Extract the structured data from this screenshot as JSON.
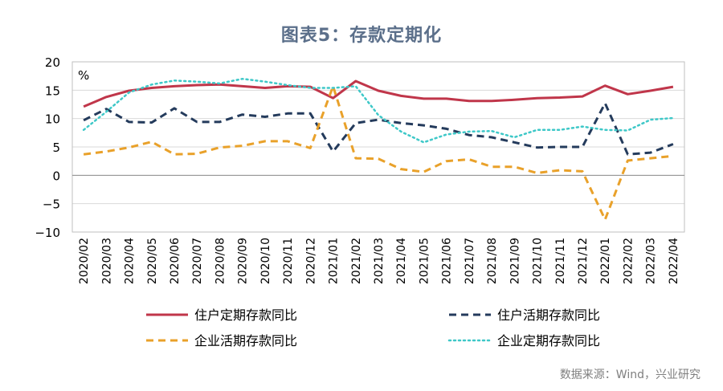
{
  "chart_data": {
    "type": "line",
    "title": "图表5：存款定期化",
    "y_unit": "%",
    "ylim": [
      -10,
      20
    ],
    "yticks": [
      -10,
      -5,
      0,
      5,
      10,
      15,
      20
    ],
    "grid": true,
    "legend_position": "bottom",
    "source": "数据来源：Wind，兴业研究",
    "x": [
      "2020/02",
      "2020/03",
      "2020/04",
      "2020/05",
      "2020/06",
      "2020/07",
      "2020/08",
      "2020/09",
      "2020/10",
      "2020/11",
      "2020/12",
      "2021/01",
      "2021/02",
      "2021/03",
      "2021/04",
      "2021/05",
      "2021/06",
      "2021/07",
      "2021/08",
      "2021/09",
      "2021/10",
      "2021/11",
      "2021/12",
      "2022/01",
      "2022/02",
      "2022/03",
      "2022/04"
    ],
    "series": [
      {
        "name": "住户定期存款同比",
        "color": "#c0364a",
        "style": "solid",
        "values": [
          12.1,
          13.8,
          14.9,
          15.4,
          15.7,
          15.9,
          16.0,
          15.7,
          15.4,
          15.7,
          15.6,
          13.6,
          16.6,
          14.9,
          14.0,
          13.5,
          13.5,
          13.1,
          13.1,
          13.3,
          13.6,
          13.7,
          13.9,
          15.8,
          14.3,
          14.9,
          15.6
        ]
      },
      {
        "name": "住户活期存款同比",
        "color": "#243b5c",
        "style": "dash",
        "values": [
          9.7,
          11.7,
          9.4,
          9.3,
          11.8,
          9.4,
          9.4,
          10.7,
          10.3,
          10.9,
          10.9,
          4.2,
          9.2,
          9.8,
          9.2,
          8.8,
          8.2,
          7.1,
          6.7,
          5.8,
          4.9,
          5.0,
          5.0,
          12.7,
          3.7,
          4.0,
          5.5
        ]
      },
      {
        "name": "企业活期存款同比",
        "color": "#e9a12a",
        "style": "dash",
        "values": [
          3.7,
          4.2,
          4.9,
          5.9,
          3.7,
          3.8,
          4.9,
          5.2,
          6.0,
          6.0,
          4.8,
          15.7,
          3.0,
          2.9,
          1.1,
          0.6,
          2.5,
          2.8,
          1.5,
          1.5,
          0.4,
          0.9,
          0.7,
          -7.8,
          2.6,
          3.0,
          3.4
        ]
      },
      {
        "name": "企业定期存款同比",
        "color": "#3ec8c8",
        "style": "dot",
        "values": [
          8.0,
          11.2,
          14.6,
          16.0,
          16.7,
          16.5,
          16.2,
          17.0,
          16.5,
          15.9,
          15.4,
          15.4,
          15.7,
          10.6,
          7.7,
          5.8,
          7.2,
          7.7,
          7.8,
          6.7,
          8.0,
          8.0,
          8.6,
          8.0,
          7.9,
          9.8,
          10.1
        ]
      }
    ]
  }
}
